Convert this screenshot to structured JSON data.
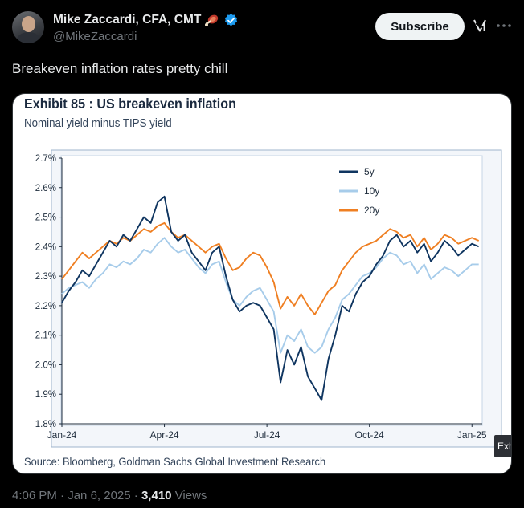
{
  "author": {
    "display_name": "Mike Zaccardi, CFA, CMT",
    "handle": "@MikeZaccardi",
    "emoji": "meat-on-bone",
    "verified_color": "#1d9bf0"
  },
  "actions": {
    "subscribe_label": "Subscribe"
  },
  "tweet": {
    "text": "Breakeven inflation rates pretty chill"
  },
  "media": {
    "exhibit_title": "Exhibit 85 : US breakeven inflation",
    "exhibit_subtitle": "Nominal yield minus TIPS yield",
    "source": "Source: Bloomberg, Goldman Sachs Global Investment Research",
    "side_tab": "Exh"
  },
  "meta": {
    "time": "4:06 PM",
    "separator": "·",
    "date": "Jan 6, 2025",
    "views_count": "3,410",
    "views_label": "Views"
  },
  "colors": {
    "accent": "#1d9bf0",
    "series_5y": "#0f3560",
    "series_10y": "#a7ccea",
    "series_20y": "#ef7f22"
  },
  "chart_data": {
    "type": "line",
    "title": "Exhibit 85 : US breakeven inflation",
    "subtitle": "Nominal yield minus TIPS yield",
    "xlabel": "",
    "ylabel": "",
    "x_range": [
      0,
      12.3
    ],
    "x_ticks": [
      {
        "v": 0,
        "label": "Jan-24"
      },
      {
        "v": 3,
        "label": "Apr-24"
      },
      {
        "v": 6,
        "label": "Jul-24"
      },
      {
        "v": 9,
        "label": "Oct-24"
      },
      {
        "v": 12,
        "label": "Jan-25"
      }
    ],
    "ylim": [
      1.8,
      2.7
    ],
    "y_ticks": [
      {
        "v": 1.8,
        "label": "1.8%"
      },
      {
        "v": 1.9,
        "label": "1.9%"
      },
      {
        "v": 2.0,
        "label": "2.0%"
      },
      {
        "v": 2.1,
        "label": "2.1%"
      },
      {
        "v": 2.2,
        "label": "2.2%"
      },
      {
        "v": 2.3,
        "label": "2.3%"
      },
      {
        "v": 2.4,
        "label": "2.4%"
      },
      {
        "v": 2.5,
        "label": "2.5%"
      },
      {
        "v": 2.6,
        "label": "2.6%"
      },
      {
        "v": 2.7,
        "label": "2.7%"
      }
    ],
    "legend_position": "top-center",
    "series": [
      {
        "name": "5y",
        "color": "#0f3560",
        "x": [
          0,
          0.2,
          0.4,
          0.6,
          0.8,
          1.0,
          1.2,
          1.4,
          1.6,
          1.8,
          2.0,
          2.2,
          2.4,
          2.6,
          2.8,
          3.0,
          3.2,
          3.4,
          3.6,
          3.8,
          4.0,
          4.2,
          4.4,
          4.6,
          4.8,
          5.0,
          5.2,
          5.4,
          5.6,
          5.8,
          6.0,
          6.2,
          6.4,
          6.6,
          6.8,
          7.0,
          7.2,
          7.4,
          7.6,
          7.8,
          8.0,
          8.2,
          8.4,
          8.6,
          8.8,
          9.0,
          9.2,
          9.4,
          9.6,
          9.8,
          10.0,
          10.2,
          10.4,
          10.6,
          10.8,
          11.0,
          11.2,
          11.4,
          11.6,
          11.8,
          12.0,
          12.2
        ],
        "values": [
          2.21,
          2.25,
          2.28,
          2.32,
          2.3,
          2.34,
          2.38,
          2.42,
          2.4,
          2.44,
          2.42,
          2.46,
          2.5,
          2.48,
          2.55,
          2.57,
          2.45,
          2.42,
          2.44,
          2.38,
          2.35,
          2.32,
          2.38,
          2.4,
          2.3,
          2.22,
          2.18,
          2.2,
          2.21,
          2.2,
          2.16,
          2.12,
          1.94,
          2.05,
          2.0,
          2.06,
          1.96,
          1.92,
          1.88,
          2.02,
          2.1,
          2.2,
          2.18,
          2.24,
          2.28,
          2.3,
          2.34,
          2.37,
          2.42,
          2.44,
          2.4,
          2.42,
          2.38,
          2.41,
          2.35,
          2.38,
          2.42,
          2.4,
          2.37,
          2.39,
          2.41,
          2.4
        ]
      },
      {
        "name": "10y",
        "color": "#a7ccea",
        "x": [
          0,
          0.2,
          0.4,
          0.6,
          0.8,
          1.0,
          1.2,
          1.4,
          1.6,
          1.8,
          2.0,
          2.2,
          2.4,
          2.6,
          2.8,
          3.0,
          3.2,
          3.4,
          3.6,
          3.8,
          4.0,
          4.2,
          4.4,
          4.6,
          4.8,
          5.0,
          5.2,
          5.4,
          5.6,
          5.8,
          6.0,
          6.2,
          6.4,
          6.6,
          6.8,
          7.0,
          7.2,
          7.4,
          7.6,
          7.8,
          8.0,
          8.2,
          8.4,
          8.6,
          8.8,
          9.0,
          9.2,
          9.4,
          9.6,
          9.8,
          10.0,
          10.2,
          10.4,
          10.6,
          10.8,
          11.0,
          11.2,
          11.4,
          11.6,
          11.8,
          12.0,
          12.2
        ],
        "values": [
          2.24,
          2.26,
          2.27,
          2.28,
          2.26,
          2.29,
          2.31,
          2.34,
          2.33,
          2.35,
          2.34,
          2.36,
          2.39,
          2.38,
          2.41,
          2.43,
          2.4,
          2.38,
          2.39,
          2.36,
          2.33,
          2.31,
          2.34,
          2.35,
          2.28,
          2.22,
          2.2,
          2.23,
          2.25,
          2.26,
          2.22,
          2.18,
          2.04,
          2.1,
          2.08,
          2.12,
          2.06,
          2.04,
          2.06,
          2.12,
          2.16,
          2.22,
          2.24,
          2.27,
          2.3,
          2.31,
          2.33,
          2.36,
          2.38,
          2.37,
          2.34,
          2.35,
          2.31,
          2.34,
          2.29,
          2.31,
          2.33,
          2.32,
          2.3,
          2.32,
          2.34,
          2.34
        ]
      },
      {
        "name": "20y",
        "color": "#ef7f22",
        "x": [
          0,
          0.2,
          0.4,
          0.6,
          0.8,
          1.0,
          1.2,
          1.4,
          1.6,
          1.8,
          2.0,
          2.2,
          2.4,
          2.6,
          2.8,
          3.0,
          3.2,
          3.4,
          3.6,
          3.8,
          4.0,
          4.2,
          4.4,
          4.6,
          4.8,
          5.0,
          5.2,
          5.4,
          5.6,
          5.8,
          6.0,
          6.2,
          6.4,
          6.6,
          6.8,
          7.0,
          7.2,
          7.4,
          7.6,
          7.8,
          8.0,
          8.2,
          8.4,
          8.6,
          8.8,
          9.0,
          9.2,
          9.4,
          9.6,
          9.8,
          10.0,
          10.2,
          10.4,
          10.6,
          10.8,
          11.0,
          11.2,
          11.4,
          11.6,
          11.8,
          12.0,
          12.2
        ],
        "values": [
          2.29,
          2.32,
          2.35,
          2.38,
          2.36,
          2.38,
          2.4,
          2.42,
          2.41,
          2.43,
          2.42,
          2.44,
          2.46,
          2.45,
          2.47,
          2.48,
          2.45,
          2.43,
          2.44,
          2.42,
          2.4,
          2.38,
          2.4,
          2.41,
          2.36,
          2.32,
          2.33,
          2.36,
          2.38,
          2.37,
          2.33,
          2.28,
          2.19,
          2.23,
          2.2,
          2.24,
          2.2,
          2.17,
          2.21,
          2.25,
          2.27,
          2.32,
          2.35,
          2.38,
          2.4,
          2.41,
          2.42,
          2.44,
          2.46,
          2.45,
          2.43,
          2.44,
          2.4,
          2.43,
          2.39,
          2.41,
          2.44,
          2.43,
          2.41,
          2.42,
          2.43,
          2.42
        ]
      }
    ]
  }
}
